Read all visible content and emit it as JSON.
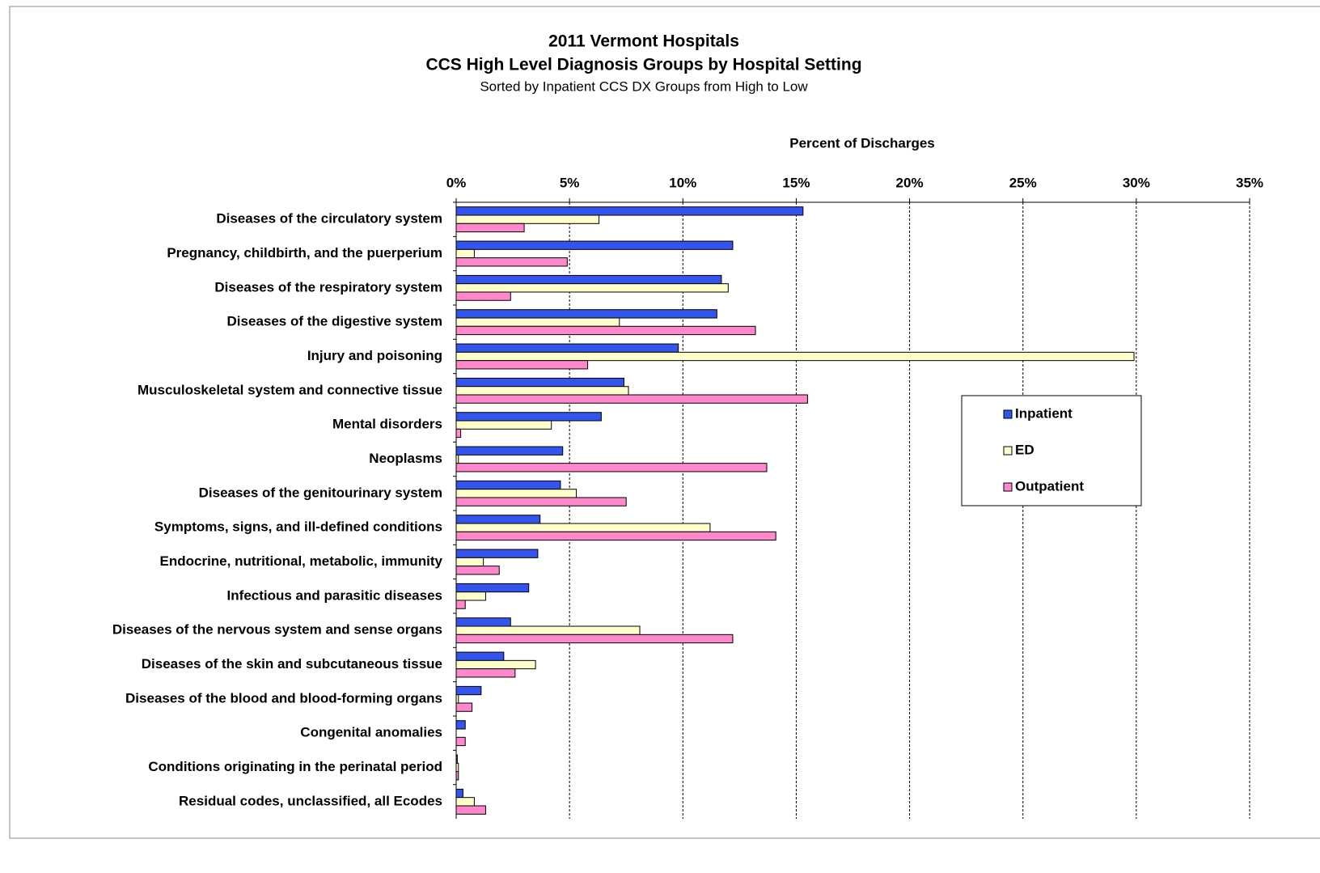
{
  "chart_data": {
    "type": "bar",
    "orientation": "horizontal",
    "title": [
      "2011 Vermont Hospitals",
      "CCS High Level Diagnosis Groups by Hospital Setting"
    ],
    "subtitle": "Sorted by Inpatient CCS DX Groups from High to Low",
    "xlabel": "Percent of Discharges",
    "categories": [
      "Diseases of the circulatory system",
      "Pregnancy, childbirth, and the puerperium",
      "Diseases of the respiratory system",
      "Diseases of the digestive system",
      "Injury and poisoning",
      "Musculoskeletal system and connective tissue",
      "Mental disorders",
      "Neoplasms",
      "Diseases of the genitourinary system",
      "Symptoms, signs, and ill-defined conditions",
      "Endocrine, nutritional, metabolic, immunity",
      "Infectious and parasitic diseases",
      "Diseases of the nervous system and sense organs",
      "Diseases of the skin and subcutaneous tissue",
      "Diseases of the blood and blood-forming organs",
      "Congenital anomalies",
      "Conditions originating in the perinatal period",
      "Residual codes, unclassified, all Ecodes"
    ],
    "series": [
      {
        "name": "Inpatient",
        "color": "#3355ee",
        "values": [
          15.3,
          12.2,
          11.7,
          11.5,
          9.8,
          7.4,
          6.4,
          4.7,
          4.6,
          3.7,
          3.6,
          3.2,
          2.4,
          2.1,
          1.1,
          0.4,
          0.05,
          0.3
        ]
      },
      {
        "name": "ED",
        "color": "#ffffcc",
        "values": [
          6.3,
          0.8,
          12.0,
          7.2,
          29.9,
          7.6,
          4.2,
          0.1,
          5.3,
          11.2,
          1.2,
          1.3,
          8.1,
          3.5,
          0.1,
          0.0,
          0.1,
          0.8
        ]
      },
      {
        "name": "Outpatient",
        "color": "#ff88cc",
        "values": [
          3.0,
          4.9,
          2.4,
          13.2,
          5.8,
          15.5,
          0.2,
          13.7,
          7.5,
          14.1,
          1.9,
          0.4,
          12.2,
          2.6,
          0.7,
          0.4,
          0.1,
          1.3
        ]
      }
    ],
    "xlim": [
      0,
      35
    ],
    "xticks": [
      {
        "value": 0,
        "label": "0%"
      },
      {
        "value": 5,
        "label": "5%"
      },
      {
        "value": 10,
        "label": "10%"
      },
      {
        "value": 15,
        "label": "15%"
      },
      {
        "value": 20,
        "label": "20%"
      },
      {
        "value": 25,
        "label": "25%"
      },
      {
        "value": 30,
        "label": "30%"
      },
      {
        "value": 35,
        "label": "35%"
      }
    ],
    "grid": true,
    "legend": "right"
  }
}
